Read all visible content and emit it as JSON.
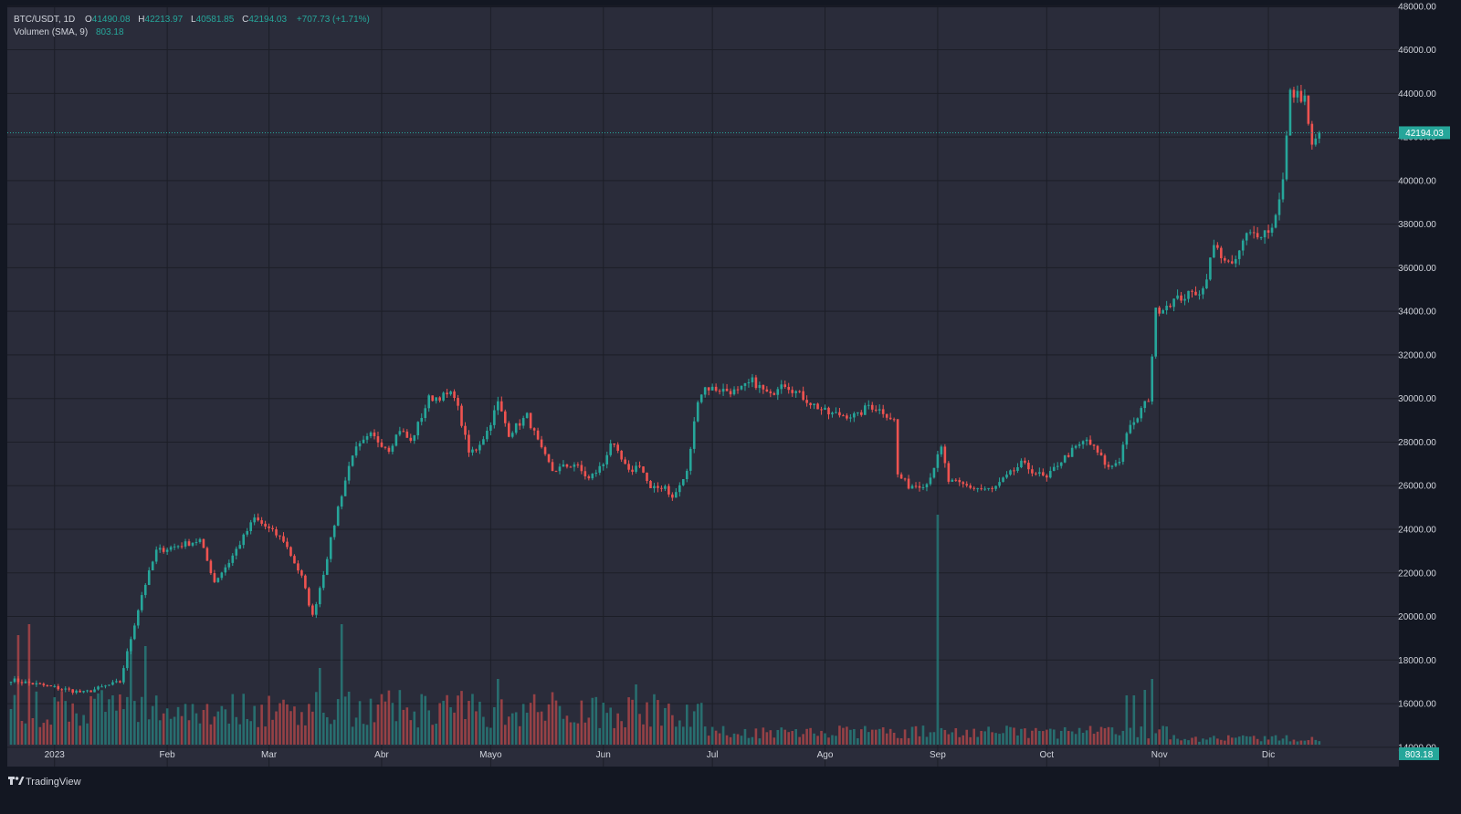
{
  "symbol_line": {
    "symbol": "BTC/USDT, 1D",
    "o_label": "O",
    "o_value": "41490.08",
    "h_label": "H",
    "h_value": "42213.97",
    "l_label": "L",
    "l_value": "40581.85",
    "c_label": "C",
    "c_value": "42194.03",
    "change": "+707.73 (+1.71%)"
  },
  "volume_line": {
    "label": "Volumen (SMA, 9)",
    "value": "803.18"
  },
  "price_axis": {
    "ticks": [
      "48000.00",
      "46000.00",
      "44000.00",
      "42000.00",
      "40000.00",
      "38000.00",
      "36000.00",
      "34000.00",
      "32000.00",
      "30000.00",
      "28000.00",
      "26000.00",
      "24000.00",
      "22000.00",
      "20000.00",
      "18000.00",
      "16000.00",
      "14000.00"
    ],
    "last_price_label": "42194.03",
    "volume_label": "803.18"
  },
  "time_axis": {
    "labels": [
      "2023",
      "Feb",
      "Mar",
      "Abr",
      "Mayo",
      "Jun",
      "Jul",
      "Ago",
      "Sep",
      "Oct",
      "Nov",
      "Dic"
    ]
  },
  "branding": {
    "text": "TradingView"
  },
  "colors": {
    "background": "#131722",
    "pane": "#2a2c3a",
    "grid": "#1c1e27",
    "up": "#26a69a",
    "down": "#ef5350",
    "axis_text": "#d1d4dc",
    "price_line": "#26a69a"
  },
  "chart_data": {
    "type": "candlestick",
    "title": "BTC/USDT, 1D",
    "interval": "1D",
    "ylim": [
      13700,
      48200
    ],
    "y_ticks": [
      48000,
      46000,
      44000,
      42000,
      40000,
      38000,
      36000,
      34000,
      32000,
      30000,
      28000,
      26000,
      24000,
      22000,
      20000,
      18000,
      16000,
      14000
    ],
    "x_labels": [
      {
        "label": "2023",
        "day": 12
      },
      {
        "label": "Feb",
        "day": 43
      },
      {
        "label": "Mar",
        "day": 71
      },
      {
        "label": "Abr",
        "day": 102
      },
      {
        "label": "Mayo",
        "day": 132
      },
      {
        "label": "Jun",
        "day": 163
      },
      {
        "label": "Jul",
        "day": 193
      },
      {
        "label": "Ago",
        "day": 224
      },
      {
        "label": "Sep",
        "day": 255
      },
      {
        "label": "Oct",
        "day": 285
      },
      {
        "label": "Nov",
        "day": 316
      },
      {
        "label": "Dic",
        "day": 346
      }
    ],
    "close_path": [
      {
        "day": 0,
        "close": 17100
      },
      {
        "day": 3,
        "close": 17000
      },
      {
        "day": 10,
        "close": 16800
      },
      {
        "day": 20,
        "close": 16500
      },
      {
        "day": 30,
        "close": 17000
      },
      {
        "day": 33,
        "close": 19000
      },
      {
        "day": 36,
        "close": 21000
      },
      {
        "day": 40,
        "close": 23000
      },
      {
        "day": 52,
        "close": 23500
      },
      {
        "day": 56,
        "close": 21600
      },
      {
        "day": 60,
        "close": 22500
      },
      {
        "day": 67,
        "close": 24500
      },
      {
        "day": 75,
        "close": 23500
      },
      {
        "day": 80,
        "close": 21800
      },
      {
        "day": 83,
        "close": 20000
      },
      {
        "day": 86,
        "close": 22000
      },
      {
        "day": 90,
        "close": 25000
      },
      {
        "day": 94,
        "close": 27500
      },
      {
        "day": 99,
        "close": 28300
      },
      {
        "day": 104,
        "close": 27700
      },
      {
        "day": 107,
        "close": 28600
      },
      {
        "day": 110,
        "close": 28000
      },
      {
        "day": 115,
        "close": 30000
      },
      {
        "day": 122,
        "close": 30200
      },
      {
        "day": 126,
        "close": 27500
      },
      {
        "day": 128,
        "close": 27700
      },
      {
        "day": 131,
        "close": 28500
      },
      {
        "day": 134,
        "close": 29800
      },
      {
        "day": 137,
        "close": 28400
      },
      {
        "day": 142,
        "close": 29200
      },
      {
        "day": 146,
        "close": 27600
      },
      {
        "day": 149,
        "close": 26700
      },
      {
        "day": 155,
        "close": 27000
      },
      {
        "day": 159,
        "close": 26300
      },
      {
        "day": 163,
        "close": 27000
      },
      {
        "day": 165,
        "close": 28000
      },
      {
        "day": 170,
        "close": 26600
      },
      {
        "day": 173,
        "close": 27000
      },
      {
        "day": 176,
        "close": 25800
      },
      {
        "day": 180,
        "close": 26000
      },
      {
        "day": 182,
        "close": 25400
      },
      {
        "day": 186,
        "close": 26600
      },
      {
        "day": 189,
        "close": 30000
      },
      {
        "day": 191,
        "close": 30500
      },
      {
        "day": 200,
        "close": 30300
      },
      {
        "day": 204,
        "close": 30800
      },
      {
        "day": 209,
        "close": 30100
      },
      {
        "day": 212,
        "close": 30800
      },
      {
        "day": 220,
        "close": 29800
      },
      {
        "day": 225,
        "close": 29300
      },
      {
        "day": 233,
        "close": 29200
      },
      {
        "day": 236,
        "close": 29700
      },
      {
        "day": 240,
        "close": 29400
      },
      {
        "day": 243,
        "close": 29000
      },
      {
        "day": 244,
        "close": 26500
      },
      {
        "day": 247,
        "close": 26000
      },
      {
        "day": 252,
        "close": 26100
      },
      {
        "day": 256,
        "close": 27700
      },
      {
        "day": 258,
        "close": 26200
      },
      {
        "day": 265,
        "close": 25900
      },
      {
        "day": 270,
        "close": 25800
      },
      {
        "day": 274,
        "close": 26400
      },
      {
        "day": 278,
        "close": 27000
      },
      {
        "day": 285,
        "close": 26300
      },
      {
        "day": 288,
        "close": 27000
      },
      {
        "day": 292,
        "close": 27600
      },
      {
        "day": 296,
        "close": 28100
      },
      {
        "day": 299,
        "close": 27500
      },
      {
        "day": 302,
        "close": 26800
      },
      {
        "day": 305,
        "close": 27200
      },
      {
        "day": 307,
        "close": 28500
      },
      {
        "day": 309,
        "close": 28800
      },
      {
        "day": 311,
        "close": 29500
      },
      {
        "day": 313,
        "close": 30000
      },
      {
        "day": 315,
        "close": 34000
      },
      {
        "day": 320,
        "close": 34500
      },
      {
        "day": 328,
        "close": 35000
      },
      {
        "day": 331,
        "close": 37000
      },
      {
        "day": 336,
        "close": 36000
      },
      {
        "day": 340,
        "close": 37500
      },
      {
        "day": 344,
        "close": 37600
      },
      {
        "day": 347,
        "close": 37800
      },
      {
        "day": 350,
        "close": 40000
      },
      {
        "day": 352,
        "close": 44000
      },
      {
        "day": 356,
        "close": 43800
      },
      {
        "day": 358,
        "close": 41500
      },
      {
        "day": 360,
        "close": 42194
      }
    ],
    "volume_spikes": [
      {
        "day": 2,
        "volume": 1.0
      },
      {
        "day": 5,
        "volume": 1.1
      },
      {
        "day": 33,
        "volume": 0.95
      },
      {
        "day": 37,
        "volume": 0.9
      },
      {
        "day": 85,
        "volume": 0.7
      },
      {
        "day": 91,
        "volume": 1.1
      },
      {
        "day": 134,
        "volume": 0.6
      },
      {
        "day": 172,
        "volume": 0.55
      },
      {
        "day": 255,
        "volume": 2.1
      },
      {
        "day": 307,
        "volume": 0.45
      },
      {
        "day": 309,
        "volume": 0.45
      },
      {
        "day": 312,
        "volume": 0.5
      },
      {
        "day": 314,
        "volume": 0.6
      }
    ],
    "current_price": 42194.03,
    "volume_sma_9": 803.18
  }
}
